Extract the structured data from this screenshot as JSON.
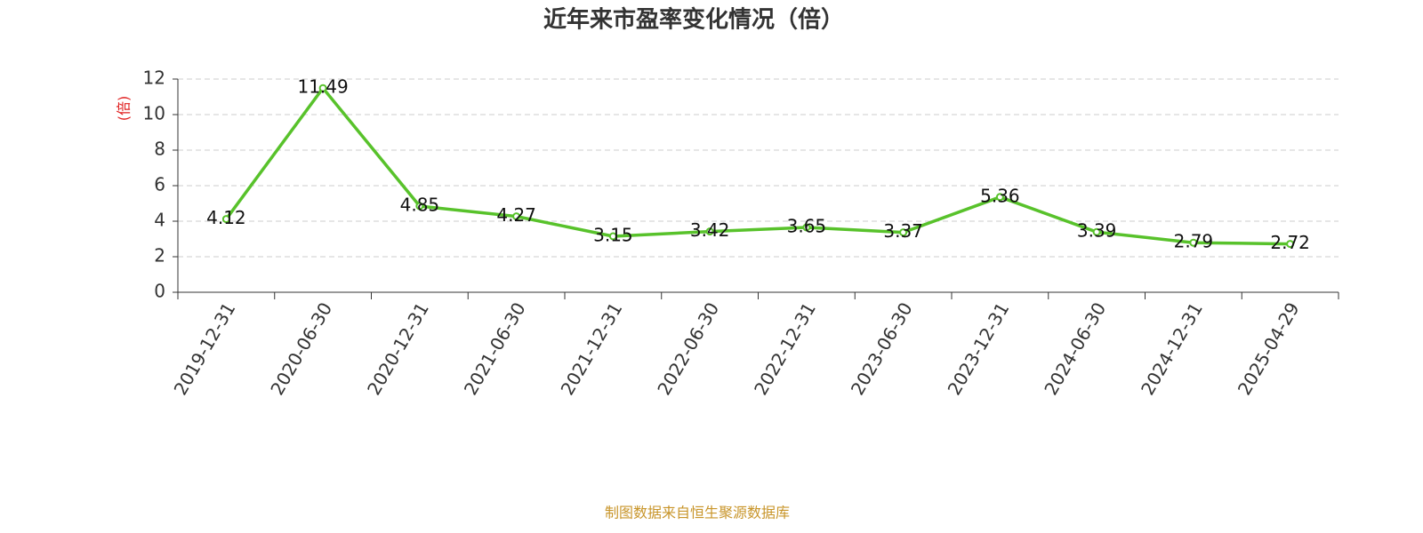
{
  "chart_data": {
    "type": "line",
    "title": "近年来市盈率变化情况（倍）",
    "y_label": "(倍)",
    "source": "制图数据来自恒生聚源数据库",
    "categories": [
      "2019-12-31",
      "2020-06-30",
      "2020-12-31",
      "2021-06-30",
      "2021-12-31",
      "2022-06-30",
      "2022-12-31",
      "2023-06-30",
      "2023-12-31",
      "2024-06-30",
      "2024-12-31",
      "2025-04-29"
    ],
    "values": [
      4.12,
      11.49,
      4.85,
      4.27,
      3.15,
      3.42,
      3.65,
      3.37,
      5.36,
      3.39,
      2.79,
      2.72
    ],
    "color": "#58c22b",
    "ylim": [
      0,
      12
    ],
    "yticks": [
      0,
      2,
      4,
      6,
      8,
      10,
      12
    ],
    "grid": true
  }
}
